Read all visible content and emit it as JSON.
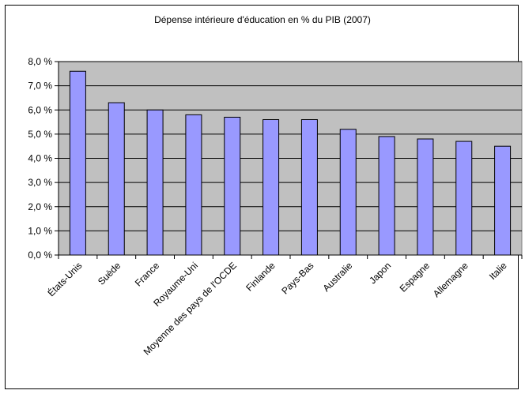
{
  "chart_data": {
    "type": "bar",
    "title": "Dépense intérieure d'éducation en % du PIB (2007)",
    "categories": [
      "États-Unis",
      "Suède",
      "France",
      "Royaume-Uni",
      "Moyenne des pays de l'OCDE",
      "Finlande",
      "Pays-Bas",
      "Australie",
      "Japon",
      "Espagne",
      "Allemagne",
      "Italie"
    ],
    "values": [
      7.6,
      6.3,
      6.0,
      5.8,
      5.7,
      5.6,
      5.6,
      5.2,
      4.9,
      4.8,
      4.7,
      4.5
    ],
    "ylim": [
      0,
      8
    ],
    "ytick_labels": [
      "0,0 %",
      "1,0 %",
      "2,0 %",
      "3,0 %",
      "4,0 %",
      "5,0 %",
      "6,0 %",
      "7,0 %",
      "8,0 %"
    ],
    "grid": true,
    "legend": "none",
    "colors": {
      "bar_fill": "#9999FF",
      "bar_stroke": "#000000",
      "plot_bg": "#C0C0C0",
      "grid": "#000000"
    }
  }
}
